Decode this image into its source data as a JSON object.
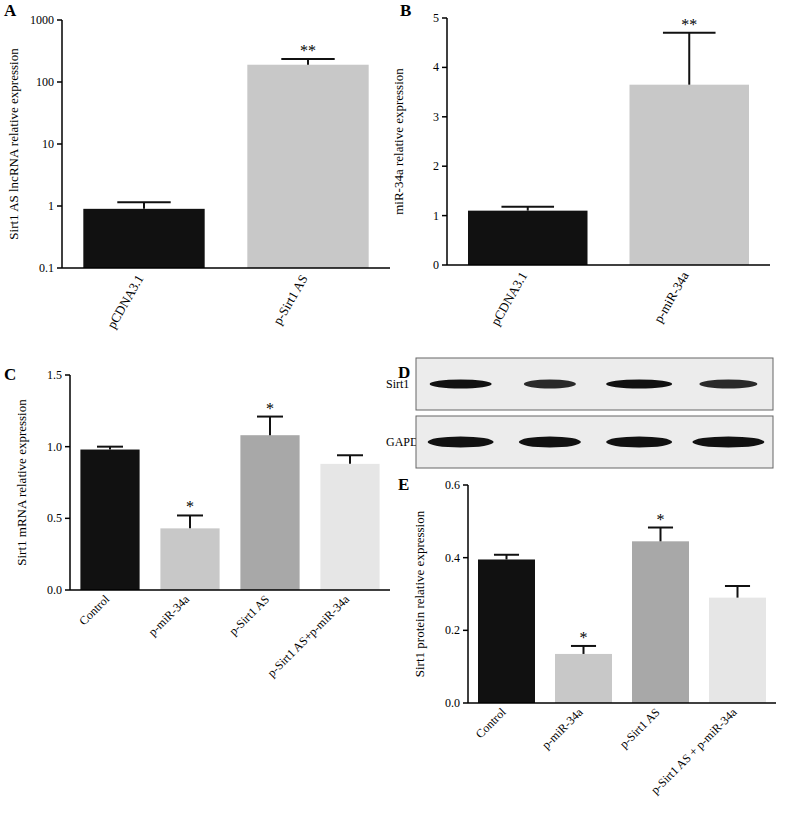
{
  "chart_data": [
    {
      "type": "bar",
      "title": "A",
      "log": "y",
      "ylabel": "Sirt1 AS lncRNA relative expression",
      "categories": [
        "pCDNA3.1",
        "p-Sirt1 AS"
      ],
      "values": [
        0.9,
        190
      ],
      "errors": [
        0.25,
        45
      ],
      "colors": [
        "#111111",
        "#c8c8c8"
      ],
      "significance": [
        null,
        "**"
      ],
      "ylim": [
        0.1,
        1000
      ],
      "yticks": [
        0.1,
        1,
        10,
        100,
        1000
      ]
    },
    {
      "type": "bar",
      "title": "B",
      "ylabel": "miR-34a relative expression",
      "categories": [
        "pCDNA3.1",
        "p-miR-34a"
      ],
      "values": [
        1.1,
        3.65
      ],
      "errors": [
        0.08,
        1.05
      ],
      "colors": [
        "#111111",
        "#c8c8c8"
      ],
      "significance": [
        null,
        "**"
      ],
      "ylim": [
        0,
        5
      ],
      "yticks": [
        0,
        1,
        2,
        3,
        4,
        5
      ]
    },
    {
      "type": "bar",
      "title": "C",
      "ylabel": "Sirt1 mRNA relative expression",
      "categories": [
        "Control",
        "p-miR-34a",
        "p-Sirt1 AS",
        "p-Sirt1 AS+p-miR-34a"
      ],
      "values": [
        0.98,
        0.43,
        1.08,
        0.88
      ],
      "errors": [
        0.02,
        0.09,
        0.13,
        0.06
      ],
      "colors": [
        "#111111",
        "#c8c8c8",
        "#a8a8a8",
        "#e6e6e6"
      ],
      "significance": [
        null,
        "*",
        "*",
        null
      ],
      "ylim": [
        0,
        1.5
      ],
      "yticks": [
        {
          "value": 0,
          "label": "0.0"
        },
        0.5,
        {
          "value": 1,
          "label": "1.0"
        },
        1.5
      ]
    },
    {
      "type": "bar",
      "title": "E",
      "ylabel": "Sirt1 protein relative expression",
      "categories": [
        "Control",
        "p-miR-34a",
        "p-Sirt1 AS",
        "p-Sirt1 AS + p-miR-34a"
      ],
      "values": [
        0.395,
        0.135,
        0.445,
        0.29
      ],
      "errors": [
        0.013,
        0.022,
        0.038,
        0.032
      ],
      "colors": [
        "#111111",
        "#c8c8c8",
        "#a8a8a8",
        "#e6e6e6"
      ],
      "significance": [
        null,
        "*",
        "*",
        null
      ],
      "ylim": [
        0,
        0.6
      ],
      "yticks": [
        {
          "value": 0,
          "label": "0.0"
        },
        0.2,
        0.4,
        0.6
      ]
    }
  ],
  "blot": {
    "title": "D",
    "rows": [
      "Sirt1",
      "GAPDH"
    ]
  }
}
